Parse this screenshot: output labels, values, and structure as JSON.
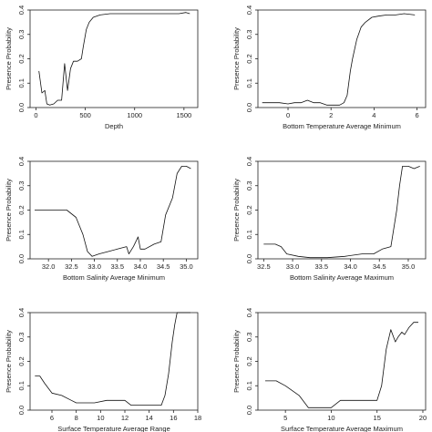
{
  "chart_data": [
    {
      "type": "line",
      "xlabel": "Depth",
      "ylabel": "Presence Probability",
      "xlim": [
        -60,
        1640
      ],
      "ylim": [
        0,
        0.4
      ],
      "xticks": [
        0,
        500,
        1000,
        1500
      ],
      "xtick_labels": [
        "0",
        "500",
        "1000",
        "1500"
      ],
      "yticks": [
        0,
        0.1,
        0.2,
        0.3,
        0.4
      ],
      "ytick_labels": [
        "0.0",
        "0.1",
        "0.2",
        "0.3",
        "0.4"
      ],
      "series": [
        {
          "x": [
            30,
            60,
            90,
            110,
            140,
            180,
            220,
            260,
            290,
            320,
            350,
            380,
            420,
            460,
            480,
            510,
            540,
            580,
            650,
            750,
            900,
            1100,
            1300,
            1450,
            1520,
            1560
          ],
          "y": [
            0.15,
            0.06,
            0.07,
            0.015,
            0.01,
            0.015,
            0.03,
            0.03,
            0.18,
            0.07,
            0.16,
            0.19,
            0.19,
            0.2,
            0.25,
            0.32,
            0.35,
            0.37,
            0.38,
            0.385,
            0.385,
            0.385,
            0.385,
            0.385,
            0.39,
            0.385
          ]
        }
      ]
    },
    {
      "type": "line",
      "xlabel": "Bottom Temperature Average Minimum",
      "ylabel": "Presence Probability",
      "xlim": [
        -1.4,
        6.4
      ],
      "ylim": [
        0,
        0.4
      ],
      "xticks": [
        0,
        2,
        4,
        6
      ],
      "xtick_labels": [
        "0",
        "2",
        "4",
        "6"
      ],
      "yticks": [
        0,
        0.1,
        0.2,
        0.3,
        0.4
      ],
      "ytick_labels": [
        "0.0",
        "0.1",
        "0.2",
        "0.3",
        "0.4"
      ],
      "series": [
        {
          "x": [
            -1.2,
            -0.8,
            -0.4,
            0.0,
            0.3,
            0.6,
            0.9,
            1.2,
            1.5,
            1.8,
            2.1,
            2.4,
            2.6,
            2.75,
            2.9,
            3.0,
            3.2,
            3.4,
            3.6,
            3.9,
            4.2,
            4.6,
            5.0,
            5.4,
            5.9
          ],
          "y": [
            0.02,
            0.02,
            0.02,
            0.015,
            0.02,
            0.02,
            0.03,
            0.02,
            0.02,
            0.01,
            0.01,
            0.01,
            0.02,
            0.05,
            0.15,
            0.2,
            0.28,
            0.33,
            0.35,
            0.37,
            0.375,
            0.38,
            0.38,
            0.385,
            0.38
          ]
        }
      ]
    },
    {
      "type": "line",
      "xlabel": "Bottom Salinity Average Minimum",
      "ylabel": "Presence Probability",
      "xlim": [
        31.6,
        35.25
      ],
      "ylim": [
        0,
        0.4
      ],
      "xticks": [
        32.0,
        32.5,
        33.0,
        33.5,
        34.0,
        34.5,
        35.0
      ],
      "xtick_labels": [
        "32.0",
        "32.5",
        "33.0",
        "33.5",
        "34.0",
        "34.5",
        "35.0"
      ],
      "yticks": [
        0,
        0.1,
        0.2,
        0.3,
        0.4
      ],
      "ytick_labels": [
        "0.0",
        "0.1",
        "0.2",
        "0.3",
        "0.4"
      ],
      "series": [
        {
          "x": [
            31.7,
            32.0,
            32.4,
            32.6,
            32.75,
            32.85,
            32.95,
            33.1,
            33.3,
            33.5,
            33.7,
            33.75,
            33.85,
            33.95,
            34.0,
            34.1,
            34.3,
            34.45,
            34.55,
            34.7,
            34.8,
            34.9,
            35.0,
            35.1
          ],
          "y": [
            0.2,
            0.2,
            0.2,
            0.17,
            0.1,
            0.03,
            0.01,
            0.02,
            0.03,
            0.04,
            0.05,
            0.02,
            0.05,
            0.09,
            0.04,
            0.04,
            0.06,
            0.07,
            0.18,
            0.25,
            0.35,
            0.38,
            0.38,
            0.37
          ]
        }
      ]
    },
    {
      "type": "line",
      "xlabel": "Bottom Salinity Average Maximum",
      "ylabel": "Presence Probability",
      "xlim": [
        32.4,
        35.3
      ],
      "ylim": [
        0,
        0.4
      ],
      "xticks": [
        32.5,
        33.0,
        33.5,
        34.0,
        34.5,
        35.0
      ],
      "xtick_labels": [
        "32.5",
        "33.0",
        "33.5",
        "34.0",
        "34.5",
        "35.0"
      ],
      "yticks": [
        0,
        0.1,
        0.2,
        0.3,
        0.4
      ],
      "ytick_labels": [
        "0.0",
        "0.1",
        "0.2",
        "0.3",
        "0.4"
      ],
      "series": [
        {
          "x": [
            32.5,
            32.7,
            32.8,
            32.9,
            33.1,
            33.3,
            33.6,
            33.9,
            34.2,
            34.4,
            34.55,
            34.7,
            34.8,
            34.85,
            34.9,
            35.0,
            35.1,
            35.2
          ],
          "y": [
            0.06,
            0.06,
            0.05,
            0.02,
            0.01,
            0.005,
            0.005,
            0.01,
            0.02,
            0.02,
            0.04,
            0.05,
            0.2,
            0.3,
            0.38,
            0.38,
            0.37,
            0.38
          ]
        }
      ]
    },
    {
      "type": "line",
      "xlabel": "Surface Temperature Average Range",
      "ylabel": "Presence Probability",
      "xlim": [
        4.2,
        18.0
      ],
      "ylim": [
        0,
        0.4
      ],
      "xticks": [
        6,
        8,
        10,
        12,
        14,
        16,
        18
      ],
      "xtick_labels": [
        "6",
        "8",
        "10",
        "12",
        "14",
        "16",
        "18"
      ],
      "yticks": [
        0,
        0.1,
        0.2,
        0.3,
        0.4
      ],
      "ytick_labels": [
        "0.0",
        "0.1",
        "0.2",
        "0.3",
        "0.4"
      ],
      "series": [
        {
          "x": [
            4.6,
            5.0,
            5.4,
            6.0,
            6.8,
            7.6,
            8.0,
            8.6,
            9.5,
            10.5,
            11.5,
            12.0,
            12.5,
            13.5,
            14.5,
            15.0,
            15.3,
            15.6,
            15.9,
            16.1,
            16.3,
            16.6,
            17.0,
            17.4
          ],
          "y": [
            0.14,
            0.14,
            0.11,
            0.07,
            0.06,
            0.04,
            0.03,
            0.03,
            0.03,
            0.04,
            0.04,
            0.04,
            0.02,
            0.02,
            0.02,
            0.02,
            0.06,
            0.15,
            0.28,
            0.35,
            0.4,
            0.4,
            0.4,
            0.4
          ]
        }
      ]
    },
    {
      "type": "line",
      "xlabel": "Surface Temperature Average Maximum",
      "ylabel": "Presence Probability",
      "xlim": [
        2.0,
        20.3
      ],
      "ylim": [
        0,
        0.4
      ],
      "xticks": [
        5,
        10,
        15,
        20
      ],
      "xtick_labels": [
        "5",
        "10",
        "15",
        "20"
      ],
      "yticks": [
        0,
        0.1,
        0.2,
        0.3,
        0.4
      ],
      "ytick_labels": [
        "0.0",
        "0.1",
        "0.2",
        "0.3",
        "0.4"
      ],
      "series": [
        {
          "x": [
            2.8,
            4.0,
            5.0,
            6.5,
            7.5,
            8.0,
            9.0,
            10.0,
            11.0,
            12.0,
            13.0,
            14.0,
            15.0,
            15.5,
            16.0,
            16.5,
            17.0,
            17.3,
            17.7,
            18.0,
            18.5,
            19.0,
            19.5
          ],
          "y": [
            0.12,
            0.12,
            0.1,
            0.06,
            0.01,
            0.01,
            0.01,
            0.01,
            0.04,
            0.04,
            0.04,
            0.04,
            0.04,
            0.1,
            0.25,
            0.33,
            0.28,
            0.3,
            0.32,
            0.31,
            0.34,
            0.36,
            0.36
          ]
        }
      ]
    }
  ]
}
